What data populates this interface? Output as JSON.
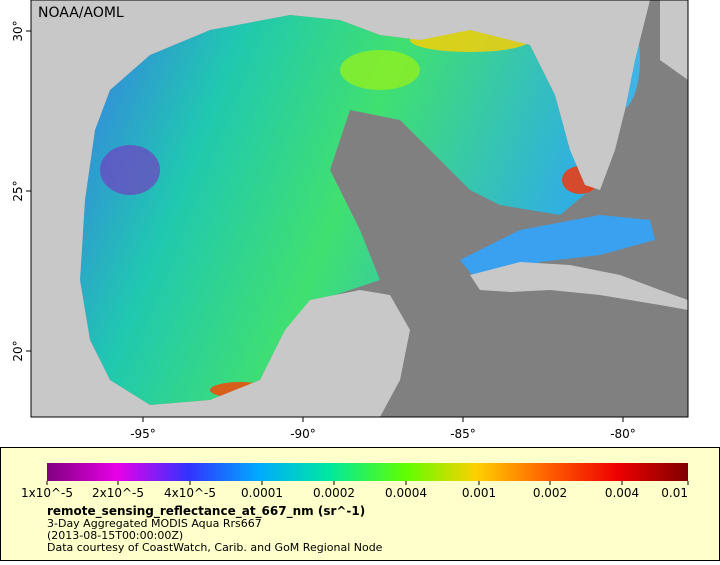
{
  "map": {
    "watermark": "NOAA/AOML",
    "lon_ticks": [
      "-95°",
      "-90°",
      "-85°",
      "-80°"
    ],
    "lat_ticks": [
      "30°",
      "25°",
      "20°"
    ]
  },
  "legend": {
    "colorbar_ticks": [
      "1x10^-5",
      "2x10^-5",
      "4x10^-5",
      "0.0001",
      "0.0002",
      "0.0004",
      "0.001",
      "0.002",
      "0.004",
      "0.01"
    ],
    "variable": "remote_sensing_reflectance_at_667_nm (sr^-1)",
    "lines": [
      "3-Day Aggregated MODIS Aqua Rrs667",
      "(2013-08-15T00:00:00Z)",
      "Data courtesy of CoastWatch, Carib. and GoM Regional Node"
    ]
  }
}
